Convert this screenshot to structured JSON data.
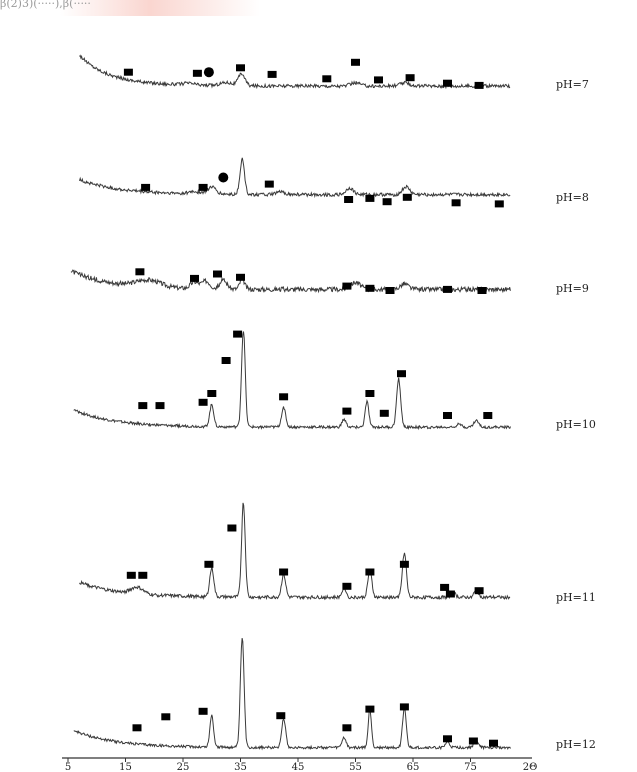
{
  "header_fragment": "β(2)3)(·····),β(·····",
  "colors": {
    "trace": "#3a3a3a",
    "marker": "#000000",
    "label": "#222222",
    "axis": "#333333"
  },
  "chart_data": {
    "type": "line",
    "title": "",
    "xlabel": "2Θ",
    "ylabel": "",
    "xlim": [
      5,
      85
    ],
    "x_ticks": [
      5,
      15,
      25,
      35,
      45,
      55,
      65,
      75
    ],
    "x_tick_labels": [
      "5",
      "15",
      "25",
      "35",
      "45",
      "55",
      "65",
      "75"
    ],
    "x_axis_unit_label": "2Θ",
    "grid": false,
    "legend": "none",
    "marker_legend": {
      "square": "■",
      "circle": "●"
    },
    "series": [
      {
        "name": "pH=7",
        "baseline_level": 0.27,
        "noise": 0.05,
        "peaks": [
          [
            35.2,
            0.55,
            0.8
          ],
          [
            32.5,
            0.15,
            1.5
          ],
          [
            55.0,
            0.15,
            1.2
          ],
          [
            63.5,
            0.14,
            1.2
          ],
          [
            26.0,
            0.08,
            1.5
          ]
        ],
        "squares": [
          [
            15.5,
            0.9
          ],
          [
            27.5,
            0.85
          ],
          [
            35.0,
            1.1
          ],
          [
            40.5,
            0.8
          ],
          [
            50.0,
            0.6
          ],
          [
            55.0,
            1.35
          ],
          [
            59.0,
            0.55
          ],
          [
            64.5,
            0.65
          ],
          [
            71.0,
            0.4
          ],
          [
            76.5,
            0.3
          ]
        ],
        "circles": [
          [
            29.5,
            0.9
          ]
        ]
      },
      {
        "name": "pH=8",
        "baseline_level": 0.47,
        "noise": 0.05,
        "peaks": [
          [
            35.3,
            1.6,
            0.55
          ],
          [
            30.0,
            0.32,
            1.0
          ],
          [
            54.0,
            0.3,
            0.9
          ],
          [
            63.8,
            0.35,
            0.9
          ],
          [
            42.0,
            0.12,
            1.0
          ],
          [
            27.0,
            0.1,
            1.5
          ]
        ],
        "squares": [
          [
            18.5,
            0.8
          ],
          [
            28.5,
            0.8
          ],
          [
            40.0,
            0.95
          ],
          [
            53.8,
            0.25
          ],
          [
            57.5,
            0.3
          ],
          [
            60.5,
            0.15
          ],
          [
            64.0,
            0.35
          ],
          [
            72.5,
            0.1
          ],
          [
            80.0,
            0.05
          ]
        ],
        "circles": [
          [
            32.0,
            1.25
          ]
        ]
      },
      {
        "name": "pH=9",
        "baseline_level": 0.3,
        "noise": 0.07,
        "peaks": [
          [
            35.3,
            0.45,
            0.6
          ],
          [
            32.0,
            0.4,
            0.9
          ],
          [
            29.0,
            0.35,
            1.0
          ],
          [
            27.0,
            0.3,
            1.0
          ],
          [
            55.0,
            0.32,
            1.2
          ],
          [
            63.5,
            0.25,
            1.0
          ],
          [
            19.0,
            0.32,
            3.0
          ]
        ],
        "squares": [
          [
            17.5,
            1.1
          ],
          [
            27.0,
            0.8
          ],
          [
            31.0,
            1.0
          ],
          [
            35.0,
            0.85
          ],
          [
            53.5,
            0.45
          ],
          [
            57.5,
            0.35
          ],
          [
            61.0,
            0.25
          ],
          [
            71.0,
            0.3
          ],
          [
            77.0,
            0.25
          ]
        ],
        "circles": []
      },
      {
        "name": "pH=10",
        "baseline_level": 0.22,
        "noise": 0.04,
        "peaks": [
          [
            35.5,
            4.4,
            0.45
          ],
          [
            30.0,
            1.0,
            0.5
          ],
          [
            42.5,
            0.9,
            0.5
          ],
          [
            57.0,
            1.15,
            0.45
          ],
          [
            62.5,
            2.2,
            0.5
          ],
          [
            53.0,
            0.35,
            0.5
          ],
          [
            73.0,
            0.2,
            0.5
          ],
          [
            76.0,
            0.3,
            0.6
          ]
        ],
        "squares": [
          [
            18.0,
            1.2
          ],
          [
            21.0,
            1.2
          ],
          [
            28.5,
            1.35
          ],
          [
            30.0,
            1.75
          ],
          [
            32.5,
            3.25
          ],
          [
            34.5,
            4.45
          ],
          [
            42.5,
            1.6
          ],
          [
            53.5,
            0.95
          ],
          [
            57.5,
            1.75
          ],
          [
            60.0,
            0.85
          ],
          [
            63.0,
            2.65
          ],
          [
            71.0,
            0.75
          ],
          [
            78.0,
            0.75
          ]
        ],
        "circles": []
      },
      {
        "name": "pH=11",
        "baseline_level": 0.35,
        "noise": 0.05,
        "peaks": [
          [
            35.5,
            4.3,
            0.45
          ],
          [
            30.0,
            1.3,
            0.5
          ],
          [
            42.5,
            1.05,
            0.5
          ],
          [
            53.0,
            0.45,
            0.5
          ],
          [
            57.5,
            1.2,
            0.5
          ],
          [
            63.5,
            2.0,
            0.5
          ],
          [
            72.0,
            0.2,
            0.6
          ],
          [
            76.0,
            0.3,
            0.6
          ],
          [
            17.0,
            0.3,
            1.5
          ]
        ],
        "squares": [
          [
            16.0,
            1.35
          ],
          [
            18.0,
            1.35
          ],
          [
            29.5,
            1.85
          ],
          [
            33.5,
            3.5
          ],
          [
            42.5,
            1.5
          ],
          [
            53.5,
            0.85
          ],
          [
            57.5,
            1.5
          ],
          [
            63.5,
            1.85
          ],
          [
            70.5,
            0.8
          ],
          [
            71.5,
            0.5
          ],
          [
            76.5,
            0.65
          ]
        ],
        "circles": []
      },
      {
        "name": "pH=12",
        "baseline_level": 0.2,
        "noise": 0.04,
        "peaks": [
          [
            35.3,
            5.0,
            0.45
          ],
          [
            30.0,
            1.45,
            0.45
          ],
          [
            42.5,
            1.3,
            0.5
          ],
          [
            53.0,
            0.45,
            0.5
          ],
          [
            57.5,
            1.75,
            0.4
          ],
          [
            63.5,
            1.85,
            0.45
          ],
          [
            71.0,
            0.25,
            0.5
          ],
          [
            76.0,
            0.3,
            0.6
          ]
        ],
        "squares": [
          [
            17.0,
            1.1
          ],
          [
            22.0,
            1.6
          ],
          [
            28.5,
            1.85
          ],
          [
            42.0,
            1.65
          ],
          [
            53.5,
            1.1
          ],
          [
            57.5,
            1.95
          ],
          [
            63.5,
            2.05
          ],
          [
            71.0,
            0.6
          ],
          [
            75.5,
            0.5
          ],
          [
            79.0,
            0.4
          ]
        ],
        "circles": []
      }
    ]
  }
}
